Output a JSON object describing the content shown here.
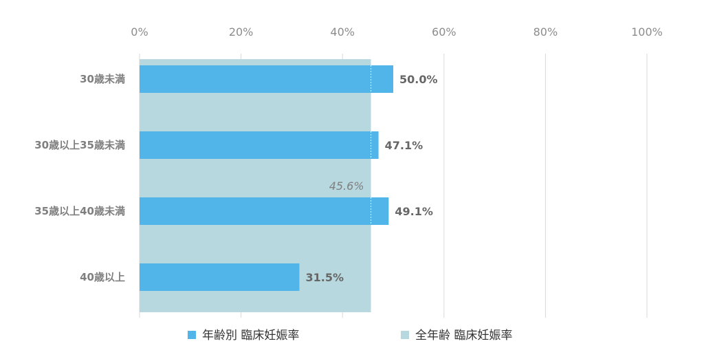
{
  "chart_data": {
    "type": "bar",
    "orientation": "horizontal",
    "categories": [
      "30歳未満",
      "30歳以上35歳未満",
      "35歳以上40歳未満",
      "40歳以上"
    ],
    "series": [
      {
        "name": "年齢別 臨床妊娠率",
        "values": [
          50.0,
          47.1,
          49.1,
          31.5
        ],
        "labels": [
          "50.0%",
          "47.1%",
          "49.1%",
          "31.5%"
        ],
        "color": "#52b5ea"
      }
    ],
    "overall": {
      "name": "全年齢 臨床妊娠率",
      "value": 45.6,
      "label": "45.6%",
      "color": "#b8d8df"
    },
    "xlim": [
      0,
      100
    ],
    "xticks": [
      "0%",
      "20%",
      "40%",
      "60%",
      "80%",
      "100%"
    ],
    "xtick_values": [
      0,
      20,
      40,
      60,
      80,
      100
    ],
    "grid": true,
    "legend_position": "bottom"
  }
}
